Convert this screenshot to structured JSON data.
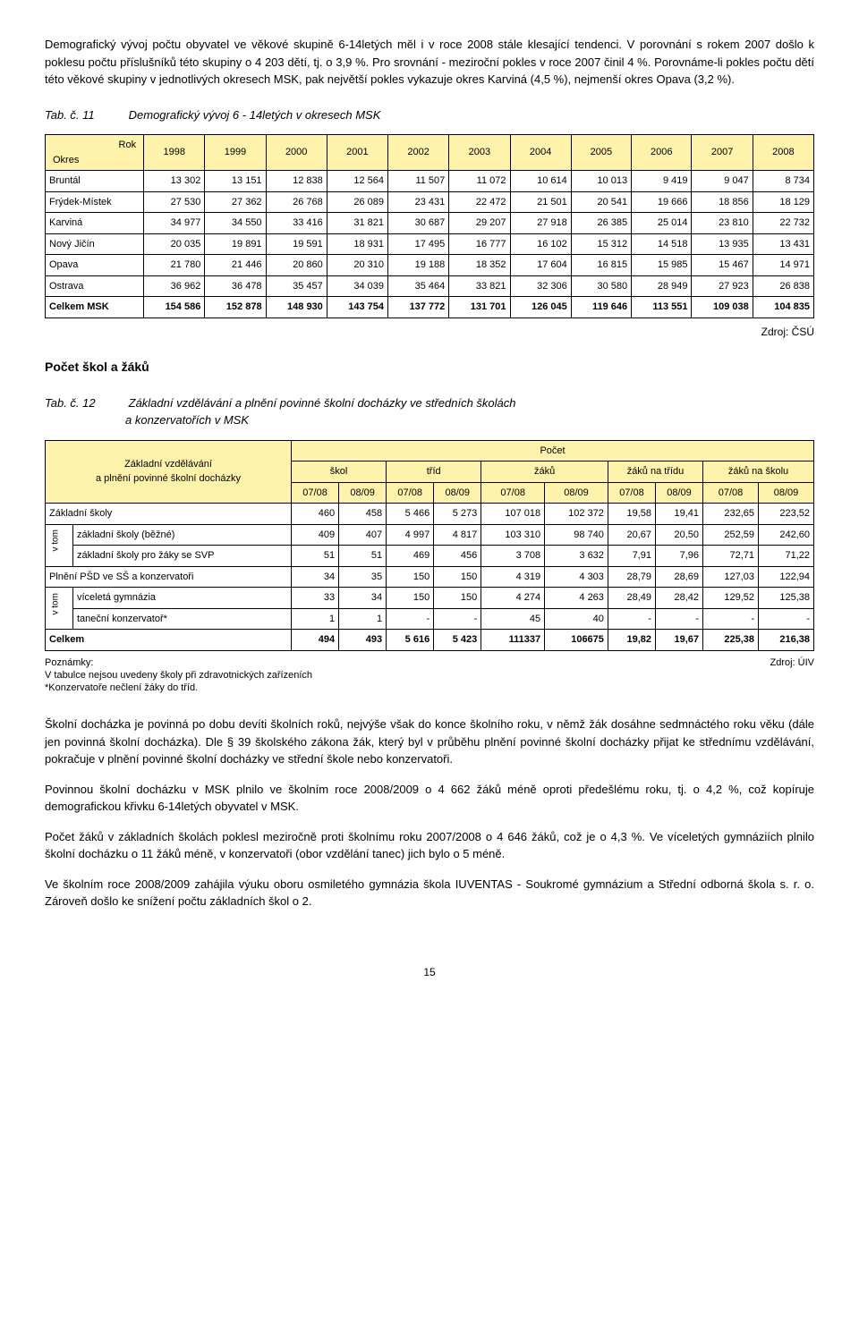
{
  "intro_para": "Demografický vývoj počtu obyvatel ve věkové skupině 6-14letých měl i v roce 2008 stále klesající tendenci. V porovnání s rokem 2007 došlo k  poklesu počtu příslušníků této skupiny o 4 203 dětí, tj. o 3,9 %. Pro srovnání - meziroční pokles v roce 2007 činil 4 %. Porovnáme-li pokles počtu dětí této věkové skupiny v jednotlivých okresech MSK, pak největší pokles vykazuje okres Karviná (4,5 %), nejmenší okres Opava (3,2 %).",
  "tab11_num": "Tab. č. 11",
  "tab11_title": "Demografický vývoj 6 - 14letých v okresech MSK",
  "tab11_corner_top": "Rok",
  "tab11_corner_left": "Okres",
  "tab11_years": [
    "1998",
    "1999",
    "2000",
    "2001",
    "2002",
    "2003",
    "2004",
    "2005",
    "2006",
    "2007",
    "2008"
  ],
  "tab11_rows": [
    {
      "label": "Bruntál",
      "vals": [
        "13 302",
        "13 151",
        "12 838",
        "12 564",
        "11 507",
        "11 072",
        "10 614",
        "10 013",
        "9 419",
        "9 047",
        "8 734"
      ]
    },
    {
      "label": "Frýdek-Místek",
      "vals": [
        "27 530",
        "27 362",
        "26 768",
        "26 089",
        "23 431",
        "22 472",
        "21 501",
        "20 541",
        "19 666",
        "18 856",
        "18 129"
      ]
    },
    {
      "label": "Karviná",
      "vals": [
        "34 977",
        "34 550",
        "33 416",
        "31 821",
        "30 687",
        "29 207",
        "27 918",
        "26 385",
        "25 014",
        "23 810",
        "22 732"
      ]
    },
    {
      "label": "Nový Jičín",
      "vals": [
        "20 035",
        "19 891",
        "19 591",
        "18 931",
        "17 495",
        "16 777",
        "16 102",
        "15 312",
        "14 518",
        "13 935",
        "13 431"
      ]
    },
    {
      "label": "Opava",
      "vals": [
        "21 780",
        "21 446",
        "20 860",
        "20 310",
        "19 188",
        "18 352",
        "17 604",
        "16 815",
        "15 985",
        "15 467",
        "14 971"
      ]
    },
    {
      "label": "Ostrava",
      "vals": [
        "36 962",
        "36 478",
        "35 457",
        "34 039",
        "35 464",
        "33 821",
        "32 306",
        "30 580",
        "28 949",
        "27 923",
        "26 838"
      ]
    }
  ],
  "tab11_total": {
    "label": "Celkem MSK",
    "vals": [
      "154 586",
      "152 878",
      "148 930",
      "143 754",
      "137 772",
      "131 701",
      "126 045",
      "119 646",
      "113 551",
      "109 038",
      "104 835"
    ]
  },
  "tab11_source": "Zdroj: ČSÚ",
  "section2_head": "Počet škol a žáků",
  "tab12_num": "Tab. č. 12",
  "tab12_title_l1": "Základní vzdělávání a plnění povinné školní docházky ve středních školách",
  "tab12_title_l2": "a konzervatořích v MSK",
  "tab12_hdr_left": "Základní vzdělávání\na plnění povinné školní docházky",
  "tab12_hdr_pocet": "Počet",
  "tab12_groups": [
    "škol",
    "tříd",
    "žáků",
    "žáků na třídu",
    "žáků na školu"
  ],
  "tab12_subyears": [
    "07/08",
    "08/09"
  ],
  "tab12_vtom": "v tom",
  "tab12_rows": [
    {
      "label": "Základní školy",
      "span": true,
      "bold": false,
      "vals": [
        "460",
        "458",
        "5 466",
        "5 273",
        "107 018",
        "102 372",
        "19,58",
        "19,41",
        "232,65",
        "223,52"
      ]
    },
    {
      "label": "základní školy (běžné)",
      "indent": true,
      "g1": true,
      "vals": [
        "409",
        "407",
        "4 997",
        "4 817",
        "103 310",
        "98 740",
        "20,67",
        "20,50",
        "252,59",
        "242,60"
      ]
    },
    {
      "label": "základní školy pro žáky se SVP",
      "indent": true,
      "vals": [
        "51",
        "51",
        "469",
        "456",
        "3 708",
        "3 632",
        "7,91",
        "7,96",
        "72,71",
        "71,22"
      ]
    },
    {
      "label": "Plnění PŠD ve SŠ a konzervatoři",
      "span": true,
      "vals": [
        "34",
        "35",
        "150",
        "150",
        "4 319",
        "4 303",
        "28,79",
        "28,69",
        "127,03",
        "122,94"
      ]
    },
    {
      "label": "víceletá gymnázia",
      "indent": true,
      "g2": true,
      "vals": [
        "33",
        "34",
        "150",
        "150",
        "4 274",
        "4 263",
        "28,49",
        "28,42",
        "129,52",
        "125,38"
      ]
    },
    {
      "label": "taneční konzervatoř*",
      "indent": true,
      "vals": [
        "1",
        "1",
        "-",
        "-",
        "45",
        "40",
        "-",
        "-",
        "-",
        "-"
      ]
    }
  ],
  "tab12_total": {
    "label": "Celkem",
    "vals": [
      "494",
      "493",
      "5 616",
      "5 423",
      "111337",
      "106675",
      "19,82",
      "19,67",
      "225,38",
      "216,38"
    ]
  },
  "tab12_notes_left1": "Poznámky:",
  "tab12_notes_left2": "V tabulce nejsou uvedeny školy při zdravotnických zařízeních",
  "tab12_notes_left3": "*Konzervatoře nečlení žáky do tříd.",
  "tab12_source": "Zdroj: ÚIV",
  "para3": "Školní docházka je povinná po dobu devíti školních roků, nejvýše však do konce školního roku, v němž žák dosáhne sedmnáctého roku věku (dále jen povinná školní docházka). Dle § 39 školského zákona žák, který byl v průběhu plnění povinné školní docházky přijat ke střednímu vzdělávání, pokračuje v plnění povinné školní docházky ve střední škole nebo konzervatoři.",
  "para4": "Povinnou školní docházku v MSK plnilo ve školním  roce 2008/2009 o 4 662 žáků méně oproti předešlému roku, tj. o 4,2 %, což kopíruje demografickou křivku 6-14letých obyvatel v MSK.",
  "para5": "Počet žáků v základních školách poklesl meziročně proti školnímu roku 2007/2008 o 4 646  žáků, což je o 4,3 %. Ve víceletých gymnáziích plnilo školní docházku o 11 žáků méně, v konzervatoři (obor vzdělání tanec) jich bylo o 5 méně.",
  "para6": "Ve školním roce 2008/2009 zahájila výuku oboru osmiletého gymnázia škola IUVENTAS - Soukromé gymnázium a Střední odborná škola s. r. o. Zároveň došlo ke snížení počtu základních škol o 2.",
  "pagenum": "15"
}
